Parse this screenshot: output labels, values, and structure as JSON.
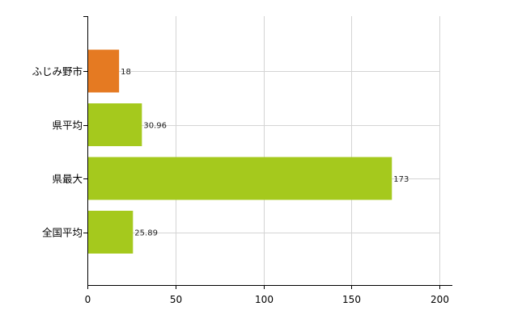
{
  "chart_data": {
    "type": "bar",
    "orientation": "horizontal",
    "title": "",
    "xlabel": "",
    "ylabel": "",
    "categories": [
      "ふじみ野市",
      "県平均",
      "県最大",
      "全国平均"
    ],
    "values": [
      18,
      30.96,
      173,
      25.89
    ],
    "value_labels": [
      "18",
      "30.96",
      "173",
      "25.89"
    ],
    "bar_colors": [
      "#e57a22",
      "#a5c91d",
      "#a5c91d",
      "#a5c91d"
    ],
    "xlim": [
      0,
      200
    ],
    "xticks": [
      0,
      50,
      100,
      150,
      200
    ],
    "xtick_labels": [
      "0",
      "50",
      "100",
      "150",
      "200"
    ],
    "grid": true,
    "legend": "none"
  }
}
